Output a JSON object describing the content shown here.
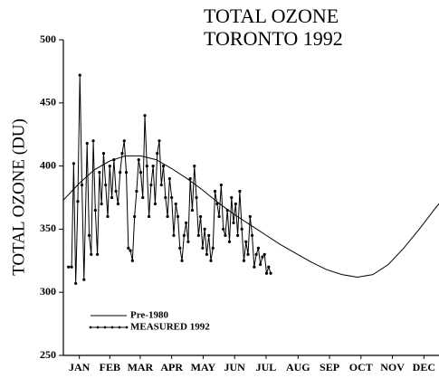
{
  "chart_data": {
    "type": "line",
    "title": [
      "TOTAL OZONE",
      "TORONTO 1992"
    ],
    "y_label": "TOTAL OZONE (DU)",
    "xlim": [
      0,
      365
    ],
    "xticks": [
      {
        "value": 15.5,
        "label": "JAN"
      },
      {
        "value": 45,
        "label": "FEB"
      },
      {
        "value": 74.5,
        "label": "MAR"
      },
      {
        "value": 105,
        "label": "APR"
      },
      {
        "value": 135.5,
        "label": "MAY"
      },
      {
        "value": 166,
        "label": "JUN"
      },
      {
        "value": 196.5,
        "label": "JUL"
      },
      {
        "value": 227.5,
        "label": "AUG"
      },
      {
        "value": 258,
        "label": "SEP"
      },
      {
        "value": 288.5,
        "label": "OCT"
      },
      {
        "value": 319,
        "label": "NOV"
      },
      {
        "value": 349.5,
        "label": "DEC"
      }
    ],
    "ylim": [
      250,
      500
    ],
    "yticks": [
      250,
      300,
      350,
      400,
      450,
      500
    ],
    "legend": "lower left",
    "series": [
      {
        "name": "Pre-1980",
        "color": "#000000",
        "markers": false,
        "x": [
          0,
          15,
          30,
          45,
          60,
          75,
          90,
          105,
          120,
          135,
          150,
          165,
          180,
          195,
          210,
          225,
          240,
          255,
          270,
          285,
          300,
          315,
          330,
          345,
          360,
          365
        ],
        "values": [
          373,
          386,
          397,
          404,
          408,
          408,
          405,
          398,
          390,
          381,
          371,
          362,
          354,
          346,
          338,
          331,
          324,
          318,
          314,
          312,
          314,
          322,
          335,
          350,
          366,
          371
        ]
      },
      {
        "name": "MEASURED 1992",
        "color": "#000000",
        "markers": true,
        "x": [
          5,
          8,
          10,
          12,
          14,
          16,
          18,
          20,
          23,
          25,
          27,
          29,
          31,
          33,
          35,
          37,
          39,
          41,
          43,
          45,
          47,
          49,
          51,
          53,
          55,
          57,
          59,
          61,
          63,
          65,
          67,
          69,
          71,
          73,
          75,
          77,
          79,
          81,
          83,
          85,
          87,
          89,
          91,
          93,
          95,
          97,
          99,
          101,
          103,
          105,
          107,
          109,
          111,
          113,
          115,
          117,
          119,
          121,
          123,
          125,
          127,
          129,
          131,
          133,
          135,
          137,
          139,
          141,
          143,
          145,
          147,
          149,
          151,
          153,
          155,
          157,
          159,
          161,
          163,
          165,
          167,
          169,
          171,
          173,
          175,
          177,
          179,
          181,
          183,
          185,
          187,
          189,
          191,
          193,
          195,
          197,
          199,
          201
        ],
        "values": [
          320,
          320,
          402,
          307,
          372,
          472,
          385,
          310,
          418,
          345,
          330,
          420,
          365,
          330,
          395,
          370,
          410,
          385,
          360,
          400,
          375,
          405,
          380,
          370,
          395,
          410,
          420,
          395,
          335,
          333,
          325,
          360,
          380,
          405,
          395,
          375,
          440,
          400,
          360,
          385,
          400,
          370,
          410,
          420,
          385,
          400,
          375,
          360,
          390,
          375,
          345,
          370,
          360,
          335,
          325,
          345,
          355,
          340,
          390,
          365,
          400,
          375,
          345,
          360,
          335,
          350,
          330,
          345,
          325,
          335,
          380,
          370,
          360,
          385,
          350,
          345,
          365,
          340,
          375,
          355,
          370,
          345,
          380,
          350,
          325,
          340,
          330,
          360,
          345,
          320,
          330,
          335,
          322,
          328,
          330,
          315,
          320,
          315
        ]
      }
    ]
  }
}
